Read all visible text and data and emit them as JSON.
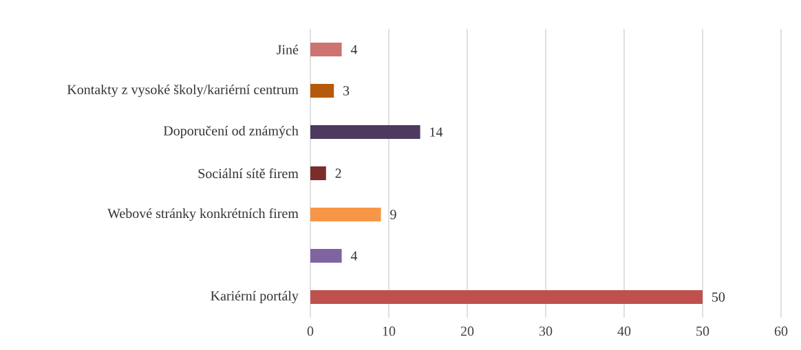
{
  "chart_data": {
    "type": "bar",
    "orientation": "horizontal",
    "categories": [
      "Jiné",
      "Kontakty z vysoké školy/kariérní centrum",
      "Doporučení od známých",
      "Sociální sítě firem",
      "Webové stránky konkrétních firem",
      null,
      "Kariérní portály"
    ],
    "values": [
      4,
      3,
      14,
      2,
      9,
      4,
      50
    ],
    "colors": [
      "#cd7371",
      "#b55a0a",
      "#4e3a60",
      "#7b2c2c",
      "#f79646",
      "#8064a2",
      "#c0504d"
    ],
    "xlim": [
      0,
      60
    ],
    "xticks": [
      0,
      10,
      20,
      30,
      40,
      50,
      60
    ],
    "grid": "x",
    "data_labels": true
  }
}
